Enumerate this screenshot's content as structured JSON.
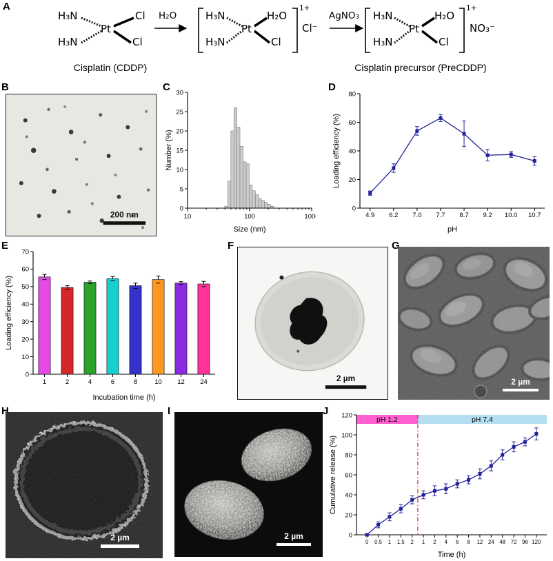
{
  "panels": {
    "A": {
      "label": "A",
      "h3n": "H₃N",
      "pt": "Pt",
      "cl": "Cl",
      "h2o": "H₂O",
      "agno3": "AgNO₃",
      "charge": "1+",
      "cl_counter": "Cl⁻",
      "no3_counter": "NO₃⁻",
      "cddp_label": "Cisplatin (CDDP)",
      "precddp_label": "Cisplatin precursor (PreCDDP)"
    },
    "B": {
      "label": "B",
      "scalebar": "200 nm"
    },
    "C": {
      "label": "C"
    },
    "D": {
      "label": "D"
    },
    "E": {
      "label": "E"
    },
    "F": {
      "label": "F",
      "scalebar": "2 µm"
    },
    "G": {
      "label": "G",
      "scalebar": "2 µm"
    },
    "H": {
      "label": "H",
      "scalebar": "2 µm"
    },
    "I": {
      "label": "I",
      "scalebar": "2 µm"
    },
    "J": {
      "label": "J"
    }
  },
  "chart_data": [
    {
      "id": "C",
      "type": "bar",
      "subtype": "histogram-logx",
      "title": "",
      "xlabel": "Size (nm)",
      "ylabel": "Number (%)",
      "xlim": [
        10,
        1000
      ],
      "ylim": [
        0,
        30
      ],
      "yticks": [
        0,
        5,
        10,
        15,
        20,
        25,
        30
      ],
      "xticks": [
        10,
        100,
        1000
      ],
      "x": [
        42,
        47,
        53,
        59,
        66,
        74,
        83,
        93,
        104,
        117,
        131,
        146,
        164,
        183,
        205,
        230
      ],
      "values": [
        0.5,
        7,
        20,
        26,
        21,
        16,
        12,
        11.5,
        6,
        4.5,
        3.5,
        2.5,
        2,
        1.5,
        1,
        0.5
      ],
      "bar_color": "#cccccc",
      "bar_edge": "#7a7a7a"
    },
    {
      "id": "D",
      "type": "line",
      "title": "",
      "xlabel": "pH",
      "ylabel": "Loading efficiency (%)",
      "categories": [
        "4.9",
        "6.2",
        "7.0",
        "7.7",
        "8.7",
        "9.2",
        "10.0",
        "10.7"
      ],
      "values": [
        10.5,
        28,
        54,
        63,
        52,
        37,
        37.5,
        33
      ],
      "errors": [
        1.5,
        3,
        3,
        2.5,
        9,
        4,
        2,
        3
      ],
      "ylim": [
        0,
        80
      ],
      "yticks": [
        0,
        20,
        40,
        60,
        80
      ],
      "color": "#20209a",
      "marker": "square"
    },
    {
      "id": "E",
      "type": "bar",
      "title": "",
      "xlabel": "Incubation time (h)",
      "ylabel": "Loading efficiency (%)",
      "categories": [
        "1",
        "2",
        "4",
        "6",
        "8",
        "10",
        "12",
        "24"
      ],
      "values": [
        55.5,
        49.5,
        52.5,
        54.5,
        50.5,
        54,
        52,
        51.5
      ],
      "errors": [
        1.5,
        1,
        0.7,
        1.2,
        1.5,
        2,
        0.8,
        1.5
      ],
      "ylim": [
        0,
        70
      ],
      "yticks": [
        0,
        10,
        20,
        30,
        40,
        50,
        60,
        70
      ],
      "colors": [
        "#e649e6",
        "#d62728",
        "#2ca02c",
        "#17cfcf",
        "#3333cc",
        "#ff9820",
        "#8a2be2",
        "#ff3399"
      ]
    },
    {
      "id": "J",
      "type": "line",
      "title": "",
      "xlabel": "Time (h)",
      "ylabel": "Cumulative release (%)",
      "categories": [
        "0",
        "0.5",
        "1",
        "1.5",
        "2",
        "1",
        "2",
        "4",
        "6",
        "8",
        "12",
        "24",
        "48",
        "72",
        "96",
        "120"
      ],
      "values": [
        0,
        10,
        18,
        26,
        35,
        40,
        44,
        46,
        51,
        55,
        61,
        69,
        80,
        88,
        93,
        101
      ],
      "errors": [
        1,
        3,
        4,
        4,
        4,
        4,
        5,
        5,
        4,
        4,
        5,
        5,
        5,
        5,
        4,
        6
      ],
      "ylim": [
        0,
        120
      ],
      "yticks": [
        0,
        20,
        40,
        60,
        80,
        100,
        120
      ],
      "color": "#20209a",
      "marker": "square",
      "regions": [
        {
          "label": "pH 1.2",
          "color": "#ff5fd0",
          "from": 0,
          "to": 4.5
        },
        {
          "label": "pH 7.4",
          "color": "#b4dff0",
          "from": 4.5,
          "to": 16
        }
      ],
      "divider": {
        "x": 4.5,
        "color": "#ee1111",
        "style": "dash-dot"
      }
    }
  ]
}
